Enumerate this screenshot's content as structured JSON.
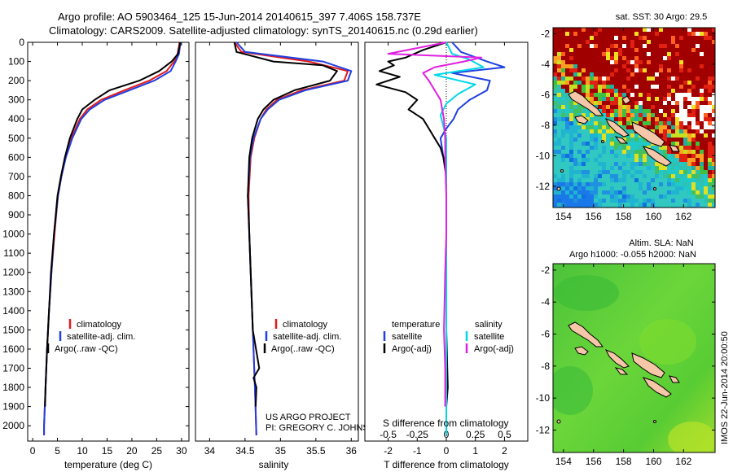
{
  "header": {
    "title_line1": "Argo profile: AO 5903464_125 15-Jun-2014 20140615_397 7.406S 158.737E",
    "title_line2": "Climatology: CARS2009. Satellite-adjusted climatology: synTS_20140615.nc (0.29d earlier)"
  },
  "credits": {
    "project": "US ARGO PROJECT",
    "pi": "PI: GREGORY C. JOHNSON",
    "stamp": "IMOS 22-Jun-2014 20:00:50"
  },
  "colors": {
    "climatology": "#e41a1c",
    "satellite": "#1f3fe0",
    "argo": "#000000",
    "sat_salinity": "#00d8e8",
    "argo_salinity": "#e020e0"
  },
  "chart_data": [
    {
      "id": "temperature",
      "type": "line",
      "xlabel": "temperature (deg C)",
      "ylabel": "",
      "xlim": [
        -1,
        31.5
      ],
      "ylim": [
        2080,
        0
      ],
      "xticks": [
        "0",
        "5",
        "10",
        "15",
        "20",
        "25",
        "30"
      ],
      "xtick_values": [
        0,
        5,
        10,
        15,
        20,
        25,
        30
      ],
      "yticks": [
        "0",
        "100",
        "200",
        "300",
        "400",
        "500",
        "600",
        "700",
        "800",
        "900",
        "1000",
        "1100",
        "1200",
        "1300",
        "1400",
        "1500",
        "1600",
        "1700",
        "1800",
        "1900",
        "2000"
      ],
      "ytick_values": [
        0,
        100,
        200,
        300,
        400,
        500,
        600,
        700,
        800,
        900,
        1000,
        1100,
        1200,
        1300,
        1400,
        1500,
        1600,
        1700,
        1800,
        1900,
        2000
      ],
      "legend": [
        "climatology",
        "satellite-adj. clim.",
        "Argo(..raw -QC)"
      ],
      "series": [
        {
          "name": "climatology",
          "color": "#e41a1c",
          "depth": [
            0,
            20,
            60,
            100,
            150,
            200,
            250,
            300,
            350,
            400,
            500,
            600,
            700,
            800,
            1000,
            1200,
            1400,
            1600,
            1800,
            2000,
            2050
          ],
          "values": [
            29.6,
            29.5,
            29.2,
            28.5,
            27.0,
            23.5,
            18.5,
            13.8,
            11.0,
            9.5,
            7.8,
            6.6,
            5.8,
            5.1,
            4.4,
            3.8,
            3.3,
            2.9,
            2.6,
            2.3,
            2.3
          ]
        },
        {
          "name": "satellite",
          "color": "#1f3fe0",
          "depth": [
            0,
            20,
            60,
            100,
            150,
            200,
            250,
            300,
            350,
            400,
            500,
            600,
            700,
            800,
            1000,
            1200,
            1400,
            1600,
            1800,
            2000,
            2050
          ],
          "values": [
            29.8,
            29.7,
            29.5,
            28.8,
            27.8,
            24.5,
            19.5,
            14.5,
            11.5,
            9.8,
            8.0,
            6.7,
            5.8,
            5.1,
            4.3,
            3.8,
            3.3,
            2.9,
            2.6,
            2.3,
            2.3
          ]
        },
        {
          "name": "argo",
          "color": "#000000",
          "depth": [
            0,
            20,
            60,
            100,
            150,
            200,
            250,
            300,
            350,
            400,
            500,
            600,
            700,
            800,
            1000,
            1200,
            1400,
            1600,
            1800,
            1900
          ],
          "values": [
            29.7,
            29.6,
            29.3,
            28.0,
            25.5,
            21.5,
            15.5,
            12.5,
            10.0,
            9.0,
            7.5,
            6.5,
            5.7,
            5.0,
            4.3,
            3.7,
            3.3,
            2.9,
            2.6,
            2.5
          ]
        }
      ]
    },
    {
      "id": "salinity",
      "type": "line",
      "xlabel": "salinity",
      "ylabel": "",
      "xlim": [
        33.8,
        36.1
      ],
      "ylim": [
        2080,
        0
      ],
      "xticks": [
        "34",
        "34.5",
        "35",
        "35.5",
        "36"
      ],
      "xtick_values": [
        34,
        34.5,
        35,
        35.5,
        36
      ],
      "legend": [
        "climatology",
        "satellite-adj. clim.",
        "Argo(..raw -QC)"
      ],
      "series": [
        {
          "name": "climatology",
          "color": "#e41a1c",
          "depth": [
            0,
            50,
            100,
            150,
            200,
            250,
            300,
            350,
            400,
            500,
            600,
            800,
            1000,
            1200,
            1500,
            1800,
            2050
          ],
          "values": [
            34.35,
            34.45,
            35.4,
            35.95,
            35.9,
            35.3,
            34.95,
            34.8,
            34.72,
            34.63,
            34.58,
            34.55,
            34.56,
            34.58,
            34.61,
            34.64,
            34.66
          ]
        },
        {
          "name": "satellite",
          "color": "#1f3fe0",
          "depth": [
            0,
            50,
            100,
            150,
            200,
            250,
            300,
            350,
            400,
            500,
            600,
            800,
            1000,
            1200,
            1500,
            1800,
            2050
          ],
          "values": [
            34.38,
            34.5,
            35.6,
            36.0,
            35.95,
            35.35,
            34.98,
            34.82,
            34.72,
            34.62,
            34.57,
            34.54,
            34.56,
            34.58,
            34.61,
            34.64,
            34.66
          ]
        },
        {
          "name": "argo",
          "color": "#000000",
          "depth": [
            0,
            50,
            100,
            120,
            150,
            200,
            250,
            300,
            350,
            400,
            500,
            600,
            800,
            1000,
            1200,
            1500,
            1700,
            1750,
            1800,
            1900
          ],
          "values": [
            34.35,
            34.38,
            34.9,
            35.6,
            35.8,
            35.7,
            35.2,
            34.9,
            34.76,
            34.68,
            34.6,
            34.56,
            34.54,
            34.56,
            34.58,
            34.61,
            34.7,
            34.62,
            34.66,
            34.65
          ]
        }
      ]
    },
    {
      "id": "difference",
      "type": "line",
      "xlabel": "T difference from climatology",
      "xlabel_top": "S difference from climatology",
      "xlim": [
        -2.8,
        2.8
      ],
      "ylim": [
        2080,
        0
      ],
      "xticks": [
        "-2",
        "-1",
        "0",
        "1",
        "2"
      ],
      "xtick_values": [
        -2,
        -1,
        0,
        1,
        2
      ],
      "sticks": [
        "-0.5",
        "-0.25",
        "0",
        "0.25",
        "0.5"
      ],
      "stick_values": [
        -0.5,
        -0.25,
        0,
        0.25,
        0.5
      ],
      "legend_temperature": {
        "header": "temperature",
        "items": [
          "satellite",
          "Argo(-adj)"
        ]
      },
      "legend_salinity": {
        "header": "salinity",
        "items": [
          "satellite",
          "Argo(-adj)"
        ]
      },
      "series": [
        {
          "name": "temperature satellite",
          "color": "#1f3fe0",
          "depth": [
            0,
            50,
            100,
            130,
            160,
            200,
            250,
            300,
            350,
            400,
            450,
            500,
            600,
            700,
            900,
            1100,
            1300,
            1500,
            1700,
            1900,
            2050
          ],
          "values": [
            0.2,
            0.5,
            1.4,
            2.0,
            0.2,
            1.5,
            1.4,
            0.8,
            0.4,
            0.25,
            0.0,
            -0.2,
            -0.1,
            0.0,
            0.0,
            0.0,
            0.0,
            0.0,
            0.0,
            0.0,
            0.0
          ]
        },
        {
          "name": "temperature argo",
          "color": "#000000",
          "depth": [
            0,
            40,
            80,
            100,
            120,
            150,
            180,
            220,
            260,
            300,
            350,
            400,
            450,
            500,
            550,
            600,
            700,
            800,
            1000,
            1200,
            1500,
            1800,
            1900
          ],
          "values": [
            0.0,
            -0.8,
            -1.4,
            -2.0,
            -1.8,
            -2.3,
            -1.6,
            -2.4,
            -1.4,
            -1.0,
            -1.3,
            -0.8,
            -0.6,
            -0.4,
            -0.2,
            -0.1,
            0.0,
            0.0,
            0.0,
            0.0,
            0.0,
            0.05,
            0.0
          ]
        },
        {
          "name": "salinity satellite",
          "color": "#00d8e8",
          "depth": [
            0,
            60,
            90,
            130,
            170,
            220,
            270,
            320,
            380,
            450,
            500,
            600,
            800,
            1000,
            1400,
            1800,
            2050
          ],
          "values": [
            0.0,
            0.05,
            0.2,
            0.32,
            -0.1,
            0.25,
            0.1,
            0.0,
            -0.05,
            -0.02,
            0.0,
            0.0,
            0.0,
            0.0,
            0.0,
            0.0,
            0.0
          ]
        },
        {
          "name": "salinity argo",
          "color": "#e020e0",
          "depth": [
            0,
            60,
            80,
            100,
            130,
            160,
            200,
            250,
            300,
            400,
            500,
            600,
            800,
            1000,
            1200,
            1500,
            1700,
            1900
          ],
          "values": [
            0.0,
            -0.5,
            0.3,
            0.15,
            -0.1,
            -0.2,
            -0.15,
            -0.1,
            -0.05,
            -0.02,
            -0.01,
            -0.01,
            0.0,
            0.0,
            -0.01,
            -0.02,
            -0.01,
            -0.01
          ]
        }
      ]
    },
    {
      "id": "sst_map",
      "type": "heatmap",
      "title": "sat. SST: 30 Argo: 29.5",
      "xticks": [
        "154",
        "156",
        "158",
        "160",
        "162"
      ],
      "xtick_values": [
        154,
        156,
        158,
        160,
        162
      ],
      "yticks": [
        "-2",
        "-4",
        "-6",
        "-8",
        "-10",
        "-12"
      ],
      "ytick_values": [
        -2,
        -4,
        -6,
        -8,
        -10,
        -12
      ],
      "xlim": [
        153.3,
        164.1
      ],
      "ylim": [
        -13.4,
        -1.6
      ]
    },
    {
      "id": "sla_map",
      "type": "heatmap",
      "title_line1": "Altim. SLA: NaN",
      "title_line2": "Argo h1000: -0.055 h2000: NaN",
      "xticks": [
        "154",
        "156",
        "158",
        "160",
        "162"
      ],
      "xtick_values": [
        154,
        156,
        158,
        160,
        162
      ],
      "yticks": [
        "-2",
        "-4",
        "-6",
        "-8",
        "-10",
        "-12"
      ],
      "ytick_values": [
        -2,
        -4,
        -6,
        -8,
        -10,
        -12
      ],
      "xlim": [
        153.3,
        164.1
      ],
      "ylim": [
        -13.4,
        -1.6
      ]
    }
  ]
}
